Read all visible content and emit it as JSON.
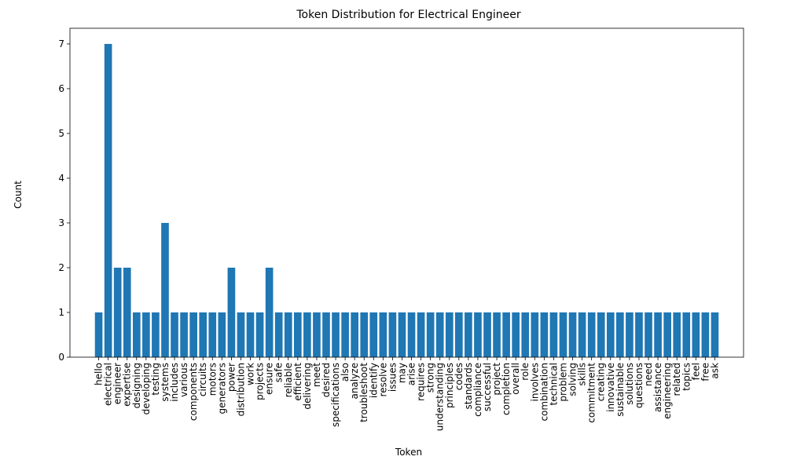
{
  "chart_data": {
    "type": "bar",
    "title": "Token Distribution for Electrical Engineer",
    "xlabel": "Token",
    "ylabel": "Count",
    "ylim": [
      0,
      7.35
    ],
    "yticks": [
      0,
      1,
      2,
      3,
      4,
      5,
      6,
      7
    ],
    "grid": false,
    "bar_color": "#1f77b4",
    "categories": [
      "hello",
      "electrical",
      "engineer",
      "expertise",
      "designing",
      "developing",
      "testing",
      "systems",
      "includes",
      "various",
      "components",
      "circuits",
      "motors",
      "generators",
      "power",
      "distribution",
      "work",
      "projects",
      "ensure",
      "safe",
      "reliable",
      "efficient",
      "delivering",
      "meet",
      "desired",
      "specifications",
      "also",
      "analyze",
      "troubleshoot",
      "identify",
      "resolve",
      "issues",
      "may",
      "arise",
      "requires",
      "strong",
      "understanding",
      "principles",
      "codes",
      "standards",
      "compliance",
      "successful",
      "project",
      "completion",
      "overall",
      "role",
      "involves",
      "combination",
      "technical",
      "problem",
      "solving",
      "skills",
      "commitment",
      "creating",
      "innovative",
      "sustainable",
      "solutions",
      "questions",
      "need",
      "assistance",
      "engineering",
      "related",
      "topics",
      "feel",
      "free",
      "ask"
    ],
    "values": [
      1,
      7,
      2,
      2,
      1,
      1,
      1,
      3,
      1,
      1,
      1,
      1,
      1,
      1,
      2,
      1,
      1,
      1,
      2,
      1,
      1,
      1,
      1,
      1,
      1,
      1,
      1,
      1,
      1,
      1,
      1,
      1,
      1,
      1,
      1,
      1,
      1,
      1,
      1,
      1,
      1,
      1,
      1,
      1,
      1,
      1,
      1,
      1,
      1,
      1,
      1,
      1,
      1,
      1,
      1,
      1,
      1,
      1,
      1,
      1,
      1,
      1,
      1,
      1,
      1,
      1
    ]
  }
}
